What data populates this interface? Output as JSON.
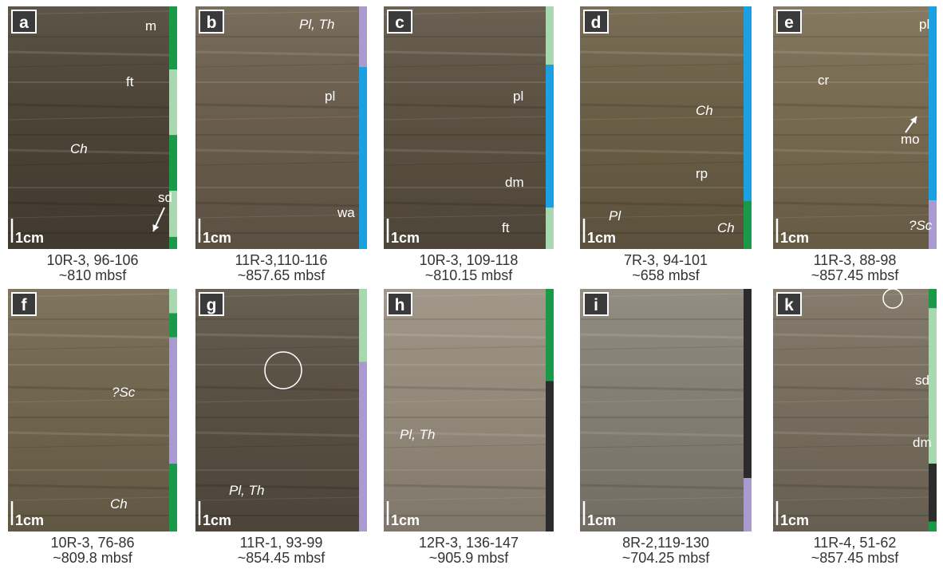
{
  "panels": [
    {
      "letter": "a",
      "labels": [
        "m",
        "ft",
        "Ch",
        "sd"
      ],
      "scale": "1cm",
      "caption": [
        "10R-3, 96-106",
        "~810 mbsf"
      ]
    },
    {
      "letter": "b",
      "labels": [
        "Pl, Th",
        "pl",
        "wa"
      ],
      "scale": "1cm",
      "caption": [
        "11R-3,110-116",
        "~857.65 mbsf"
      ]
    },
    {
      "letter": "c",
      "labels": [
        "pl",
        "dm",
        "ft"
      ],
      "scale": "1cm",
      "caption": [
        "10R-3, 109-118",
        "~810.15 mbsf"
      ]
    },
    {
      "letter": "d",
      "labels": [
        "Ch",
        "rp",
        "Pl",
        "Ch"
      ],
      "scale": "1cm",
      "caption": [
        "7R-3, 94-101",
        "~658 mbsf"
      ]
    },
    {
      "letter": "e",
      "labels": [
        "pl",
        "cr",
        "mo",
        "?Sc"
      ],
      "scale": "1cm",
      "caption": [
        "11R-3, 88-98",
        "~857.45 mbsf"
      ]
    },
    {
      "letter": "f",
      "labels": [
        "?Sc",
        "Ch"
      ],
      "scale": "1cm",
      "caption": [
        "10R-3, 76-86",
        "~809.8 mbsf"
      ]
    },
    {
      "letter": "g",
      "labels": [
        "Pl, Th"
      ],
      "scale": "1cm",
      "caption": [
        "11R-1, 93-99",
        "~854.45 mbsf"
      ]
    },
    {
      "letter": "h",
      "labels": [
        "Pl, Th"
      ],
      "scale": "1cm",
      "caption": [
        "12R-3, 136-147",
        "~905.9 mbsf"
      ]
    },
    {
      "letter": "i",
      "labels": [],
      "scale": "1cm",
      "caption": [
        "8R-2,119-130",
        "~704.25 mbsf"
      ]
    },
    {
      "letter": "k",
      "labels": [
        "sd",
        "dm"
      ],
      "scale": "1cm",
      "caption": [
        "11R-4, 51-62",
        "~857.45 mbsf"
      ]
    }
  ]
}
